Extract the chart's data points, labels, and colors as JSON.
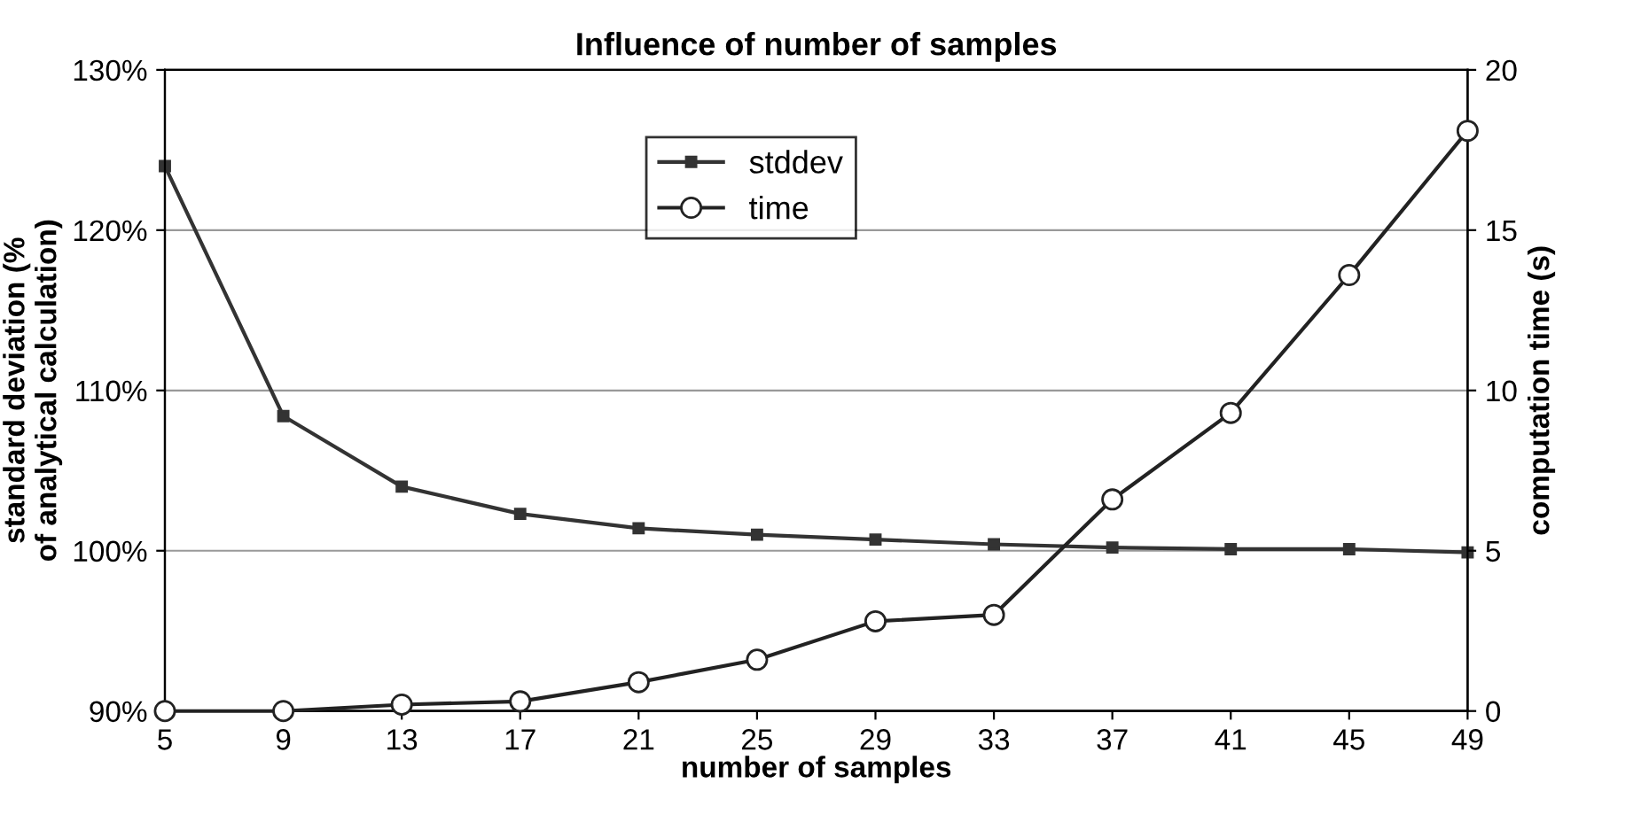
{
  "chart_data": {
    "type": "line",
    "title": "Influence of number of samples",
    "xlabel": "number of samples",
    "ylabel": "standard deviation (%\nof analytical calculation)",
    "y2label": "computation time (s)",
    "categories": [
      "5",
      "9",
      "13",
      "17",
      "21",
      "25",
      "29",
      "33",
      "37",
      "41",
      "45",
      "49"
    ],
    "series": [
      {
        "name": "stddev",
        "color": "#333333",
        "marker": "square",
        "values": [
          124,
          108.4,
          104,
          102.3,
          101.4,
          101,
          100.7,
          100.4,
          100.2,
          100.1,
          100.1,
          99.9
        ]
      },
      {
        "name": "time",
        "color": "#222222",
        "marker": "circle",
        "axis": "y2",
        "values": [
          0,
          0,
          0.2,
          0.3,
          0.9,
          1.6,
          2.8,
          3.0,
          6.6,
          9.3,
          13.6,
          18.1
        ]
      }
    ],
    "ylim": [
      90,
      130
    ],
    "yticks": [
      {
        "value": 90,
        "label": "90%"
      },
      {
        "value": 100,
        "label": "100%"
      },
      {
        "value": 110,
        "label": "110%"
      },
      {
        "value": 120,
        "label": "120%"
      },
      {
        "value": 130,
        "label": "130%"
      }
    ],
    "y2lim": [
      0,
      20
    ],
    "y2ticks": [
      0,
      5,
      10,
      15,
      20
    ],
    "grid": "y",
    "legend": "top",
    "line_style": "solid"
  }
}
